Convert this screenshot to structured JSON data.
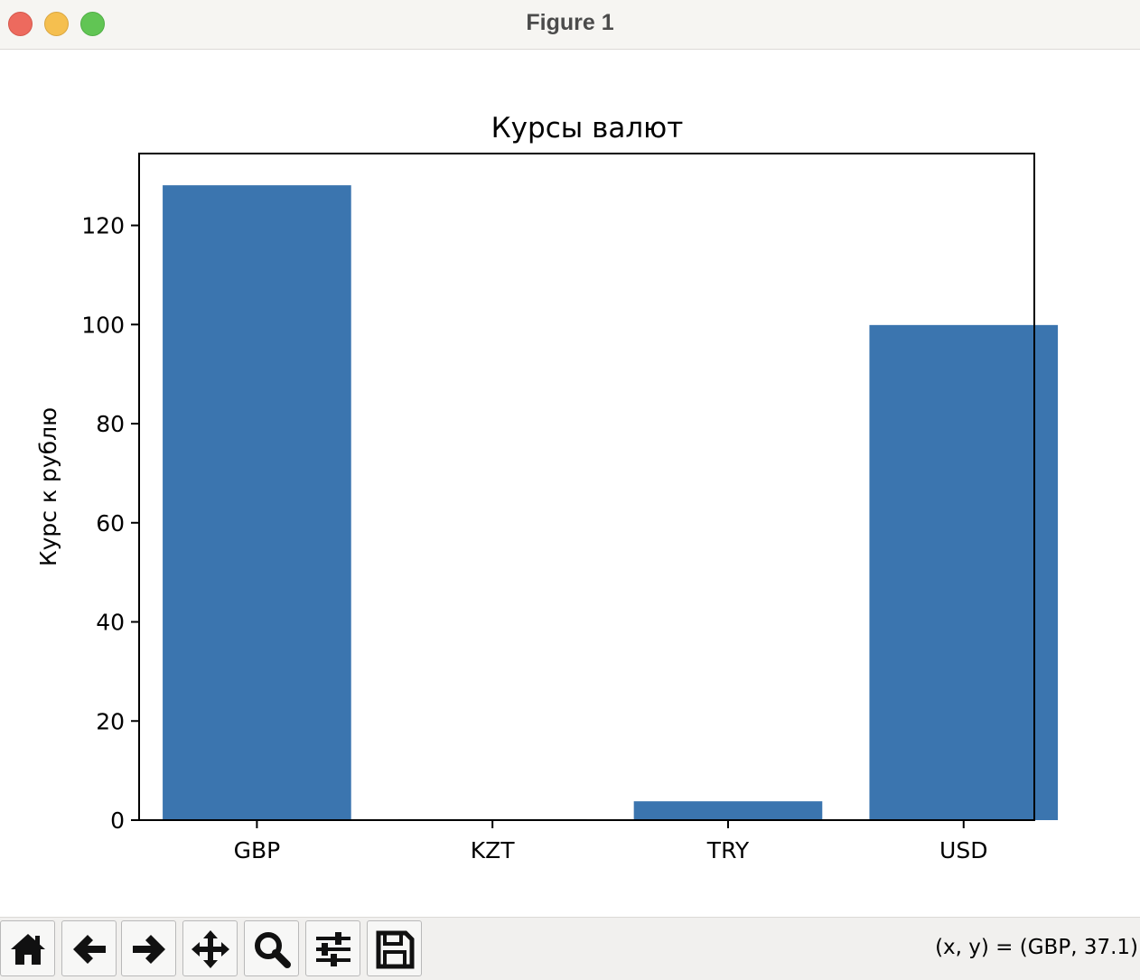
{
  "window": {
    "title": "Figure 1"
  },
  "chart_data": {
    "type": "bar",
    "title": "Курсы валют",
    "xlabel": "",
    "ylabel": "Курс к рублю",
    "categories": [
      "GBP",
      "KZT",
      "TRY",
      "USD"
    ],
    "values": [
      128.1,
      0.2,
      3.8,
      99.9
    ],
    "ylim": [
      0,
      134.5
    ],
    "yticks": [
      0,
      20,
      40,
      60,
      80,
      100,
      120
    ],
    "bar_color": "#3b75af",
    "grid": false,
    "legend": "none"
  },
  "toolbar": {
    "buttons": [
      {
        "name": "home-button",
        "icon": "home-icon"
      },
      {
        "name": "back-button",
        "icon": "arrow-left-icon"
      },
      {
        "name": "forward-button",
        "icon": "arrow-right-icon"
      },
      {
        "name": "pan-button",
        "icon": "move-icon"
      },
      {
        "name": "zoom-button",
        "icon": "magnifier-icon"
      },
      {
        "name": "configure-subplots-button",
        "icon": "sliders-icon"
      },
      {
        "name": "save-button",
        "icon": "floppy-disk-icon"
      }
    ],
    "coords": "(x, y) = (GBP, 37.1)"
  }
}
